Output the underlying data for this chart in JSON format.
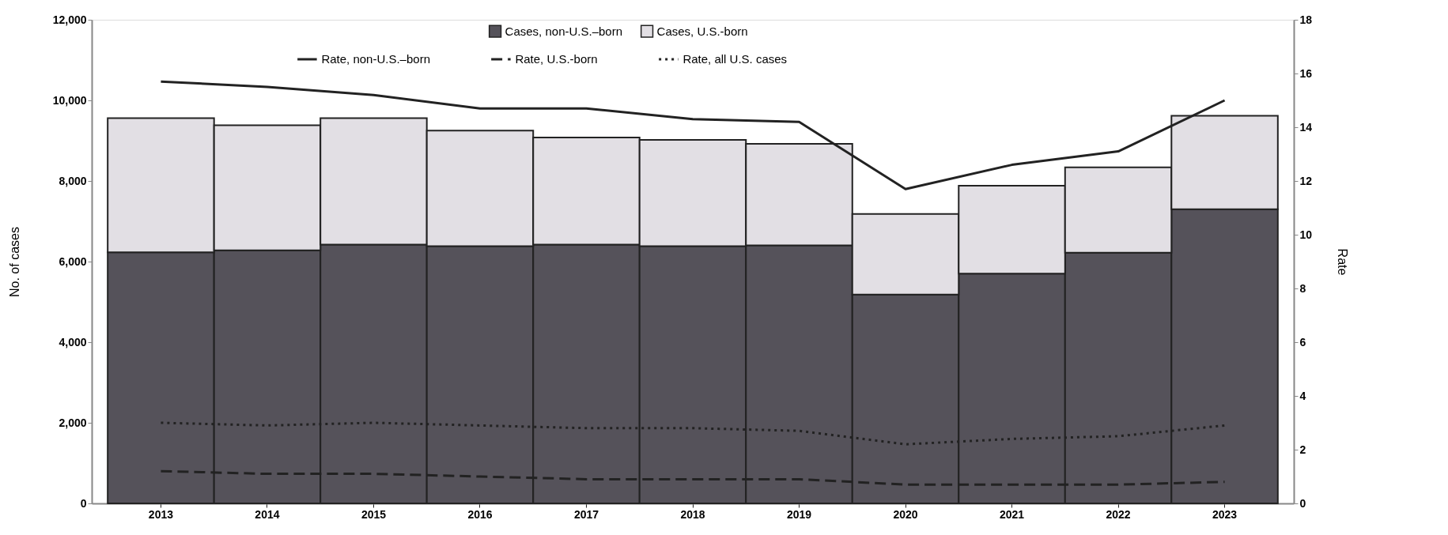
{
  "chart_data": {
    "type": "bar",
    "stacked": true,
    "ylabel": "No. of cases",
    "y2label": "Rate",
    "categories": [
      "2013",
      "2014",
      "2015",
      "2016",
      "2017",
      "2018",
      "2019",
      "2020",
      "2021",
      "2022",
      "2023"
    ],
    "series": [
      {
        "name": "Cases, non-U.S.–born",
        "color": "#55525a",
        "values": [
          6230,
          6280,
          6420,
          6380,
          6420,
          6380,
          6400,
          5180,
          5700,
          6220,
          7300
        ]
      },
      {
        "name": "Cases, U.S.-born",
        "color": "#e2dfe4",
        "values": [
          3330,
          3100,
          3140,
          2870,
          2660,
          2640,
          2520,
          2000,
          2180,
          2120,
          2320
        ]
      },
      {
        "name": "Rate, non-U.S.–born",
        "type": "line",
        "axis": "y2",
        "color": "#222222",
        "line_style": "solid",
        "values": [
          15.7,
          15.5,
          15.2,
          14.7,
          14.7,
          14.3,
          14.2,
          11.7,
          12.6,
          13.1,
          15.0
        ]
      },
      {
        "name": "Rate, U.S.-born",
        "type": "line",
        "axis": "y2",
        "color": "#222222",
        "line_style": "dashed",
        "values": [
          1.2,
          1.1,
          1.1,
          1.0,
          0.9,
          0.9,
          0.9,
          0.7,
          0.7,
          0.7,
          0.8
        ]
      },
      {
        "name": "Rate, all U.S. cases",
        "type": "line",
        "axis": "y2",
        "color": "#222222",
        "line_style": "dotted",
        "values": [
          3.0,
          2.9,
          3.0,
          2.9,
          2.8,
          2.8,
          2.7,
          2.2,
          2.4,
          2.5,
          2.9
        ]
      }
    ],
    "ylim": [
      0,
      12000
    ],
    "yticks": [
      0,
      {
        "value": 2000,
        "label": "2,000"
      },
      {
        "value": 4000,
        "label": "4,000"
      },
      {
        "value": 6000,
        "label": "6,000"
      },
      {
        "value": 8000,
        "label": "8,000"
      },
      {
        "value": 10000,
        "label": "10,000"
      },
      {
        "value": 12000,
        "label": "12,000"
      }
    ],
    "y2lim": [
      0,
      18
    ],
    "y2ticks": [
      0,
      2,
      4,
      6,
      8,
      10,
      12,
      14,
      16,
      18
    ],
    "legend": "top",
    "grid": false
  }
}
